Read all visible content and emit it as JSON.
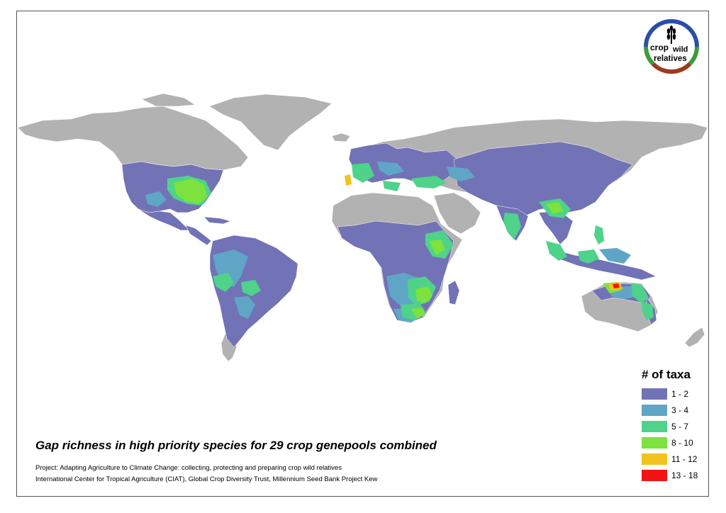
{
  "map": {
    "title": "Gap richness in high priority species for 29 crop genepools combined",
    "project_line": "Project: Adapting Agriculture to Climate Change: collecting, protecting and preparing crop wild relatives",
    "institutions_line": "International Center for Tropical Agriculture (CIAT), Global Crop Diversity Trust, Millennium Seed Bank Project Kew",
    "land_color": "#b2b2b2",
    "border_color": "#ffffff"
  },
  "logo": {
    "word1": "crop",
    "word2": "wild",
    "word3": "relatives",
    "ring_colors": [
      "#2a4fa8",
      "#3f9a3a",
      "#9c3a1e"
    ]
  },
  "legend": {
    "title": "# of taxa",
    "classes": [
      {
        "label": "1 - 2",
        "color": "#7272b6"
      },
      {
        "label": "3 - 4",
        "color": "#5fa6c6"
      },
      {
        "label": "5 - 7",
        "color": "#4fd28a"
      },
      {
        "label": "8 - 10",
        "color": "#7de23e"
      },
      {
        "label": "11 - 12",
        "color": "#f2c31d"
      },
      {
        "label": "13 - 18",
        "color": "#f41313"
      }
    ]
  }
}
